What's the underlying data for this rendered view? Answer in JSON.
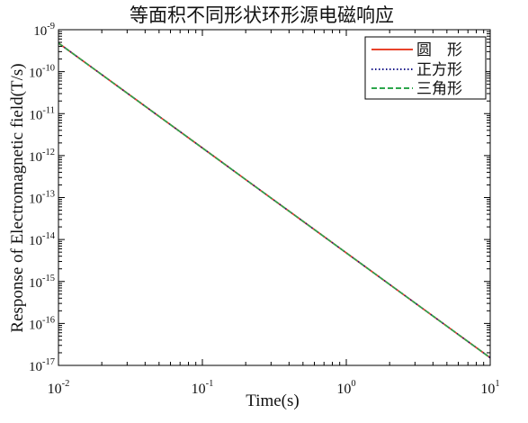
{
  "chart_data": {
    "type": "line",
    "title": "等面积不同形状环形源电磁响应",
    "xlabel": "Time(s)",
    "ylabel": "Response of Electromagnetic field(T/s)",
    "xscale": "log",
    "yscale": "log",
    "xlim": [
      0.01,
      10
    ],
    "ylim": [
      1e-17,
      1e-09
    ],
    "grid": false,
    "legend_position": "top-right",
    "x": [
      0.01,
      0.02,
      0.05,
      0.1,
      0.2,
      0.5,
      1,
      2,
      5,
      10
    ],
    "series": [
      {
        "name": "圆　形",
        "color": "#e8432b",
        "style": "solid",
        "values": [
          4.8e-10,
          8.49e-11,
          8.59e-12,
          1.52e-12,
          2.68e-13,
          2.72e-14,
          4.8e-15,
          8.49e-16,
          8.59e-17,
          1.52e-17
        ]
      },
      {
        "name": "正方形",
        "color": "#1a1a8a",
        "style": "dotted",
        "values": [
          4.8e-10,
          8.49e-11,
          8.59e-12,
          1.52e-12,
          2.68e-13,
          2.72e-14,
          4.8e-15,
          8.49e-16,
          8.59e-17,
          1.52e-17
        ]
      },
      {
        "name": "三角形",
        "color": "#2ca64b",
        "style": "dashed",
        "values": [
          4.8e-10,
          8.49e-11,
          8.59e-12,
          1.52e-12,
          2.68e-13,
          2.72e-14,
          4.8e-15,
          8.49e-16,
          8.59e-17,
          1.52e-17
        ]
      }
    ],
    "xticks": [
      {
        "value": 0.01,
        "base": "10",
        "exp": "-2"
      },
      {
        "value": 0.1,
        "base": "10",
        "exp": "-1"
      },
      {
        "value": 1,
        "base": "10",
        "exp": "0"
      },
      {
        "value": 10,
        "base": "10",
        "exp": "1"
      }
    ],
    "yticks": [
      {
        "value": 1e-09,
        "base": "10",
        "exp": "-9"
      },
      {
        "value": 1e-10,
        "base": "10",
        "exp": "-10"
      },
      {
        "value": 1e-11,
        "base": "10",
        "exp": "-11"
      },
      {
        "value": 1e-12,
        "base": "10",
        "exp": "-12"
      },
      {
        "value": 1e-13,
        "base": "10",
        "exp": "-13"
      },
      {
        "value": 1e-14,
        "base": "10",
        "exp": "-14"
      },
      {
        "value": 1e-15,
        "base": "10",
        "exp": "-15"
      },
      {
        "value": 1e-16,
        "base": "10",
        "exp": "-16"
      },
      {
        "value": 1e-17,
        "base": "10",
        "exp": "-17"
      }
    ]
  }
}
